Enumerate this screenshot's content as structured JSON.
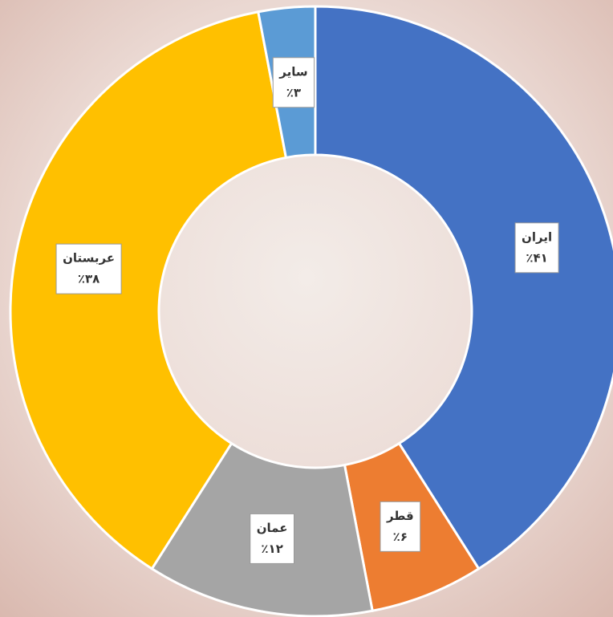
{
  "chart_data": {
    "type": "donut",
    "categories": [
      "ایران",
      "قطر",
      "عمان",
      "عربستان",
      "سایر"
    ],
    "values": [
      41,
      6,
      12,
      38,
      3
    ],
    "value_labels": [
      "٪۴۱",
      "٪۶",
      "٪۱۲",
      "٪۳۸",
      "٪۳"
    ],
    "colors": [
      "#4472c4",
      "#ed7d31",
      "#a5a5a5",
      "#ffc000",
      "#5b9bd5"
    ]
  }
}
